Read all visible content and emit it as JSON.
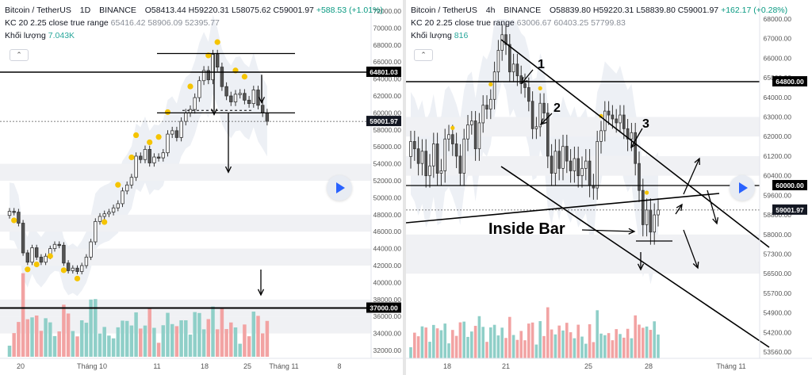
{
  "chart_data": [
    {
      "type": "candlestick",
      "title": "Bitcoin / TetherUS",
      "timeframe": "1D",
      "exchange": "BINANCE",
      "ohlc": {
        "o": "O58413.44",
        "h": "H59220.31",
        "l": "L58075.62",
        "c": "C59001.97",
        "change": "+588.53 (+1.01%)"
      },
      "indicator": {
        "name": "KC 20 2.25 close true range",
        "values": "65416.42  58906.09  52395.77"
      },
      "volume": {
        "label": "Khối lượng",
        "value": "7.043K"
      },
      "ylim": [
        32000,
        72000
      ],
      "y_ticks": [
        "72000.00",
        "70000.00",
        "68000.00",
        "66000.00",
        "64000.00",
        "62000.00",
        "60000.00",
        "58000.00",
        "56000.00",
        "54000.00",
        "52000.00",
        "50000.00",
        "48000.00",
        "46000.00",
        "44000.00",
        "42000.00",
        "40000.00",
        "38000.00",
        "36000.00",
        "34000.00",
        "32000.00"
      ],
      "x_ticks": [
        "20",
        "Tháng 10",
        "11",
        "18",
        "25",
        "Tháng 11",
        "8"
      ],
      "price_labels": {
        "resistance": "64801.03",
        "current": "59001.97",
        "support": "37000.00"
      },
      "grid": false,
      "legend": "none",
      "colors": {
        "up": "#26a69a",
        "down": "#ef5350",
        "marker": "#f5c400",
        "resistance_bg": "#000000",
        "current_bg": "#131722"
      },
      "series": [
        {
          "name": "price",
          "values": [
            48400,
            48300,
            47000,
            43500,
            42400,
            44100,
            43000,
            42400,
            43100,
            44000,
            44500,
            44400,
            42300,
            41400,
            41700,
            41300,
            42000,
            43000,
            44800,
            47200,
            47800,
            48100,
            48300,
            48800,
            49300,
            50800,
            51500,
            52400,
            54900,
            54500,
            55700,
            54100,
            54800,
            54700,
            55300,
            57500,
            57900,
            57100,
            59000,
            60000,
            60400,
            61800,
            63800,
            65000,
            63900,
            66900,
            65400,
            63100,
            62000,
            61300,
            62200,
            62300,
            61500,
            61100,
            62700,
            60900,
            60000,
            59001
          ]
        }
      ]
    },
    {
      "type": "candlestick",
      "title": "Bitcoin / TetherUS",
      "timeframe": "4h",
      "exchange": "BINANCE",
      "ohlc": {
        "o": "O58839.80",
        "h": "H59220.31",
        "l": "L58839.80",
        "c": "C59001.97",
        "change": "+162.17 (+0.28%)"
      },
      "indicator": {
        "name": "KC 20 2.25 close true range",
        "values": "63006.67  60403.25  57799.83"
      },
      "volume": {
        "label": "Khối lượng",
        "value": "816"
      },
      "ylim": [
        53560,
        68000
      ],
      "y_ticks": [
        "68000.00",
        "67000.00",
        "66000.00",
        "65000.00",
        "64000.00",
        "63000.00",
        "62000.00",
        "61200.00",
        "60400.00",
        "59600.00",
        "58800.00",
        "58000.00",
        "57300.00",
        "56500.00",
        "55700.00",
        "54900.00",
        "54200.00",
        "53560.00"
      ],
      "x_ticks": [
        "18",
        "21",
        "25",
        "28",
        "Tháng 11"
      ],
      "price_labels": {
        "resistance": "64800.00",
        "level": "60000.00",
        "current": "59001.97"
      },
      "annotations": [
        "1",
        "2",
        "3",
        "Inside Bar"
      ],
      "grid": false,
      "legend": "none",
      "colors": {
        "up": "#26a69a",
        "down": "#ef5350",
        "marker": "#f5c400"
      },
      "series": [
        {
          "name": "price",
          "values": [
            61800,
            61500,
            60900,
            61400,
            60400,
            60800,
            61700,
            60500,
            60600,
            61900,
            62100,
            61700,
            61200,
            60500,
            61900,
            62600,
            62800,
            61500,
            62700,
            63600,
            63400,
            63900,
            65300,
            66400,
            67200,
            66700,
            65300,
            65700,
            65100,
            64700,
            64500,
            63800,
            62400,
            62500,
            63700,
            63200,
            61200,
            60500,
            61400,
            60700,
            61600,
            61000,
            60600,
            61100,
            60400,
            60700,
            61000,
            60000,
            59900,
            61800,
            62300,
            63300,
            63100,
            62900,
            62700,
            63100,
            62400,
            61900,
            62200,
            60900,
            59800,
            58400,
            59000,
            58100,
            58800,
            59001
          ]
        }
      ]
    }
  ]
}
